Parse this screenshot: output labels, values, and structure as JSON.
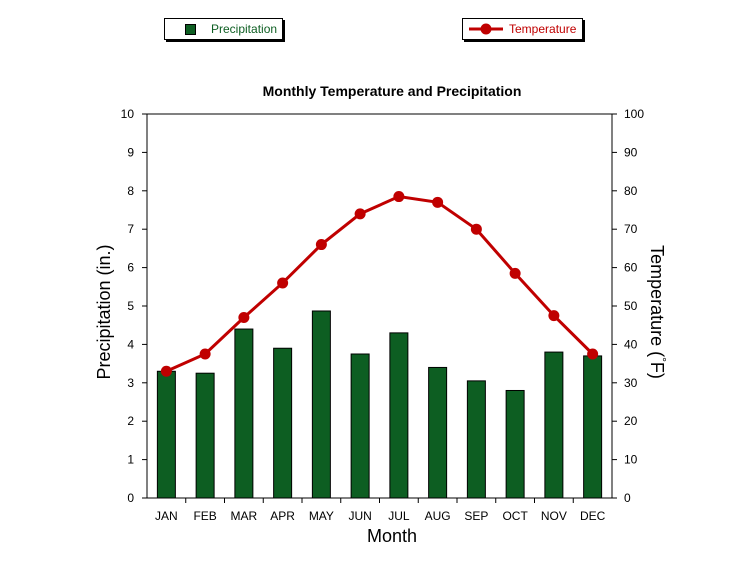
{
  "legend": {
    "precipitation_label": "Precipitation",
    "temperature_label": "Temperature"
  },
  "chart_data": {
    "type": "bar",
    "title": "Monthly Temperature and Precipitation",
    "xlabel": "Month",
    "ylabel": "Precipitation (in.)",
    "y2label_prefix": "Temperature (",
    "y2label_degree": "°",
    "y2label_suffix": "F)",
    "categories": [
      "JAN",
      "FEB",
      "MAR",
      "APR",
      "MAY",
      "JUN",
      "JUL",
      "AUG",
      "SEP",
      "OCT",
      "NOV",
      "DEC"
    ],
    "ylim": [
      0,
      10
    ],
    "y2lim": [
      0,
      100
    ],
    "yticks": [
      0,
      1,
      2,
      3,
      4,
      5,
      6,
      7,
      8,
      9,
      10
    ],
    "y2ticks": [
      0,
      10,
      20,
      30,
      40,
      50,
      60,
      70,
      80,
      90,
      100
    ],
    "grid": false,
    "legend_placement": "top",
    "series": [
      {
        "name": "Precipitation",
        "type": "bar",
        "axis": "left",
        "color": "#0d5e22",
        "values": [
          3.3,
          3.25,
          4.4,
          3.9,
          4.87,
          3.75,
          4.3,
          3.4,
          3.05,
          2.8,
          3.8,
          3.7
        ]
      },
      {
        "name": "Temperature",
        "type": "line",
        "axis": "right",
        "color": "#c00000",
        "values": [
          33,
          37.5,
          47,
          56,
          66,
          74,
          78.5,
          77,
          70,
          58.5,
          47.5,
          37.5
        ]
      }
    ]
  }
}
